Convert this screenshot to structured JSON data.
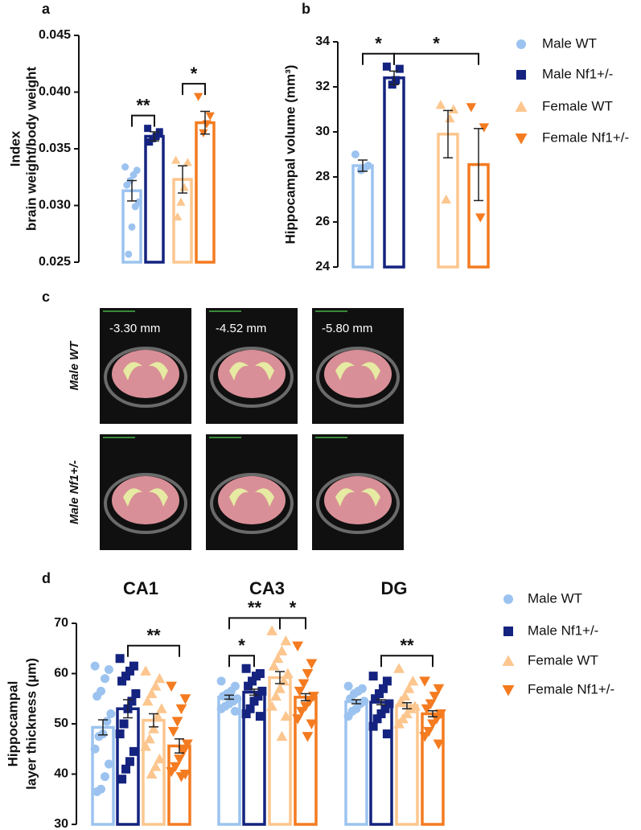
{
  "chart_data": [
    {
      "type": "bar",
      "panel": "a",
      "ylabel": [
        "Index",
        "brain weight/body weight"
      ],
      "ylim": [
        0.025,
        0.045
      ],
      "yticks": [
        0.025,
        {
          "value": 0.03,
          "label": "0.030"
        },
        0.035,
        {
          "value": 0.04,
          "label": "0.040"
        },
        0.045
      ],
      "categories": [
        null
      ],
      "legend": false,
      "series": [
        {
          "color": "#9cc3ef",
          "marker": "circle",
          "values": [
            0.0313
          ],
          "errors": [
            0.0009
          ],
          "points": [
            [
              0.0334,
              0.0331,
              0.0327,
              0.0322,
              0.0318,
              0.0303,
              0.0299,
              0.0281,
              0.0257
            ]
          ]
        },
        {
          "color": "#14237f",
          "marker": "square",
          "values": [
            0.0361
          ],
          "errors": [
            0.0004
          ],
          "points": [
            [
              0.0368,
              0.0365,
              0.0361,
              0.0359,
              0.0356
            ]
          ]
        },
        {
          "color": "#fcc68e",
          "marker": "triangle-up",
          "values": [
            0.0323
          ],
          "errors": [
            0.0012
          ],
          "points": [
            [
              0.034,
              0.0338,
              0.0316,
              0.0303,
              0.029
            ]
          ]
        },
        {
          "color": "#f47b20",
          "marker": "triangle-down",
          "values": [
            0.0373
          ],
          "errors": [
            0.001
          ],
          "points": [
            [
              0.0396,
              0.0379,
              0.0372,
              0.0364
            ]
          ]
        }
      ],
      "annotations": [
        {
          "text": "**",
          "category": 0,
          "from": 0,
          "to": 1
        },
        {
          "text": "*",
          "category": 0,
          "from": 2,
          "to": 3
        }
      ]
    },
    {
      "type": "bar",
      "panel": "b",
      "ylabel": [
        "Hippocampal volume (mm³)"
      ],
      "ylim": [
        24,
        34
      ],
      "yticks": [
        24,
        26,
        28,
        30,
        32,
        34
      ],
      "categories": [
        null
      ],
      "legend": true,
      "series": [
        {
          "name": "Male WT",
          "color": "#9cc3ef",
          "marker": "circle",
          "values": [
            28.5
          ],
          "errors": [
            0.25
          ],
          "points": [
            [
              29.0,
              28.5,
              28.4,
              28.3
            ]
          ]
        },
        {
          "name": "Male Nf1+/-",
          "color": "#14237f",
          "marker": "square",
          "values": [
            32.4
          ],
          "errors": [
            0.3
          ],
          "points": [
            [
              32.9,
              32.8,
              32.3,
              32.1
            ]
          ]
        },
        {
          "name": "Female WT",
          "color": "#fcc68e",
          "marker": "triangle-up",
          "values": [
            29.9
          ],
          "errors": [
            1.05
          ],
          "points": [
            [
              31.2,
              31.0,
              30.6,
              27.0
            ]
          ]
        },
        {
          "name": "Female Nf1+/-",
          "color": "#f47b20",
          "marker": "triangle-down",
          "values": [
            28.55
          ],
          "errors": [
            1.6
          ],
          "points": [
            [
              31.1,
              30.2,
              26.2
            ]
          ]
        }
      ],
      "annotations": [
        {
          "text": "*",
          "category": 0,
          "from": 0,
          "to": 1
        },
        {
          "text": "*",
          "category": 0,
          "from": 1,
          "to": 3
        }
      ]
    },
    {
      "type": "bar",
      "panel": "d",
      "ylabel": [
        "Hippocampal",
        "layer thickness (µm)"
      ],
      "ylim": [
        30,
        70
      ],
      "yticks": [
        30,
        40,
        50,
        60,
        70
      ],
      "categories": [
        "CA1",
        "CA3",
        "DG"
      ],
      "legend": true,
      "series": [
        {
          "name": "Male WT",
          "color": "#9cc3ef",
          "marker": "circle",
          "values": [
            49.3,
            55.3,
            54.4
          ],
          "errors": [
            1.5,
            0.4,
            0.4
          ],
          "points": [
            [
              61.5,
              60.8,
              59.0,
              56.5,
              55.5,
              52.0,
              50.5,
              48.0,
              47.5,
              45.0,
              42.0,
              39.5,
              37.0,
              36.5
            ],
            [
              58.5,
              57.5,
              56.5,
              56.0,
              55.5,
              55.0,
              54.5,
              54.0,
              53.5,
              53.0,
              52.5
            ],
            [
              57.5,
              57.0,
              56.5,
              56.0,
              55.0,
              54.5,
              54.0,
              53.0,
              52.5,
              51.5
            ]
          ]
        },
        {
          "name": "Male Nf1+/-",
          "color": "#14237f",
          "marker": "square",
          "values": [
            53.0,
            56.3,
            54.3
          ],
          "errors": [
            1.8,
            0.6,
            0.5
          ],
          "points": [
            [
              63.0,
              61.5,
              60.5,
              59.5,
              58.5,
              56.0,
              54.5,
              53.0,
              50.0,
              48.0,
              44.5,
              42.5,
              41.0,
              39.0
            ],
            [
              61.0,
              60.0,
              59.5,
              58.5,
              57.5,
              56.5,
              55.5,
              54.5,
              53.0,
              52.0,
              51.5
            ],
            [
              59.5,
              58.5,
              57.0,
              56.0,
              55.0,
              54.0,
              53.0,
              52.0,
              51.0,
              49.5,
              48.0
            ]
          ]
        },
        {
          "name": "Female WT",
          "color": "#fcc68e",
          "marker": "triangle-up",
          "values": [
            50.7,
            59.2,
            53.6
          ],
          "errors": [
            1.3,
            1.2,
            0.6
          ],
          "points": [
            [
              60.5,
              59.0,
              57.5,
              56.0,
              54.5,
              53.0,
              51.5,
              49.0,
              47.0,
              45.5,
              43.0,
              41.5,
              40.0
            ],
            [
              68.5,
              66.5,
              64.5,
              63.0,
              61.5,
              60.0,
              58.5,
              57.0,
              55.5,
              53.5,
              51.5,
              47.5
            ],
            [
              61.0,
              58.5,
              57.0,
              55.5,
              54.5,
              53.5,
              53.0,
              52.0,
              51.0,
              50.0
            ]
          ]
        },
        {
          "name": "Female Nf1+/-",
          "color": "#f47b20",
          "marker": "triangle-down",
          "values": [
            45.6,
            55.3,
            52.0
          ],
          "errors": [
            1.4,
            0.7,
            0.6
          ],
          "points": [
            [
              57.5,
              55.0,
              53.0,
              50.5,
              48.5,
              46.0,
              44.5,
              43.0,
              41.5,
              40.5,
              40.0,
              39.5
            ],
            [
              65.5,
              62.0,
              60.0,
              58.0,
              56.5,
              55.5,
              54.5,
              53.5,
              52.5,
              51.0,
              50.0,
              47.5
            ],
            [
              58.5,
              57.0,
              55.5,
              54.0,
              53.0,
              52.0,
              51.0,
              50.0,
              48.5,
              47.5,
              46.0
            ]
          ]
        }
      ],
      "annotations": [
        {
          "text": "**",
          "category": 0,
          "from": 1,
          "to": 3
        },
        {
          "text": "*",
          "category": 1,
          "from": 0,
          "to": 1
        },
        {
          "text": "**",
          "category": 1,
          "from": 0,
          "to": 2
        },
        {
          "text": "*",
          "category": 1,
          "from": 2,
          "to": 3
        },
        {
          "text": "**",
          "category": 2,
          "from": 1,
          "to": 3
        }
      ]
    }
  ],
  "mri": {
    "panel": "c",
    "rows": [
      "Male WT",
      "Male Nf1+/-"
    ],
    "columns": [
      "-3.30 mm",
      "-4.52 mm",
      "-5.80 mm"
    ]
  }
}
